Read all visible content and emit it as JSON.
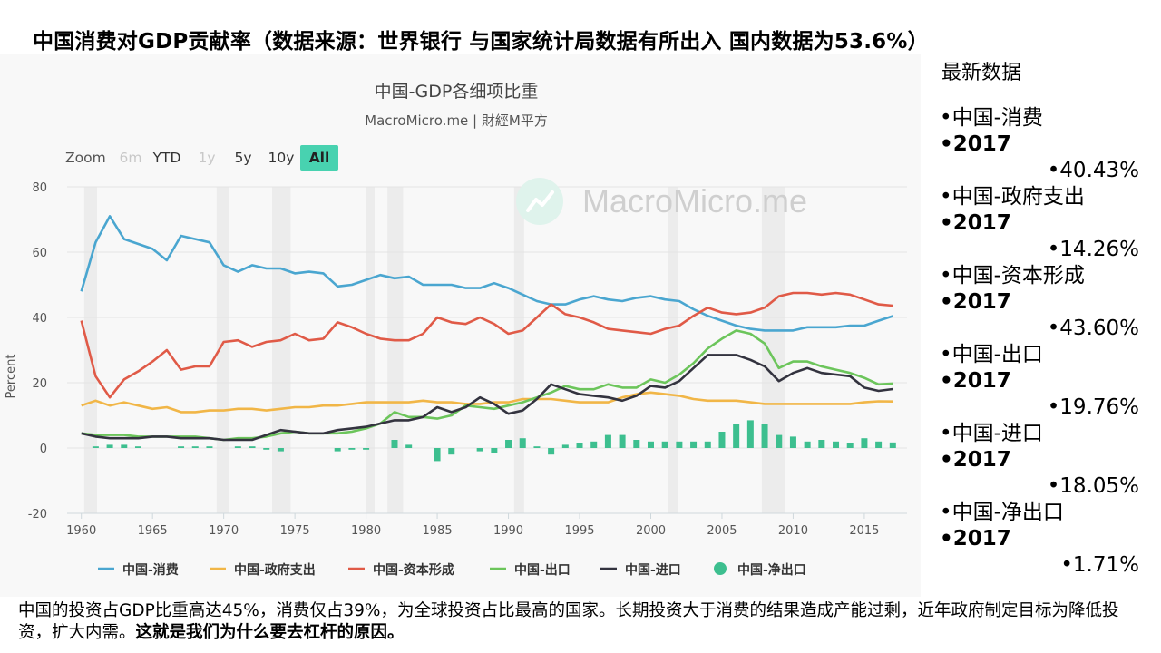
{
  "slide": {
    "title": "中国消费对GDP贡献率（数据来源：世界银行 与国家统计局数据有所出入 国内数据为53.6%）",
    "side_heading": "最新数据",
    "latest": [
      {
        "name": "•中国-消费",
        "year": "•2017",
        "value": "•40.43%"
      },
      {
        "name": "•中国-政府支出",
        "year": "•2017",
        "value": "•14.26%"
      },
      {
        "name": "•中国-资本形成",
        "year": "•2017",
        "value": "•43.60%"
      },
      {
        "name": "•中国-出口",
        "year": "•2017",
        "value": "•19.76%"
      },
      {
        "name": "•中国-进口",
        "year": "•2017",
        "value": "•18.05%"
      },
      {
        "name": "•中国-净出口",
        "year": "•2017",
        "value": "•1.71%"
      }
    ],
    "bottom_text": "中国的投资占GDP比重高达45%，消费仅占39%，为全球投资占比最高的国家。长期投资大于消费的结果造成产能过剩，近年政府制定目标为降低投资，扩大内需。",
    "bottom_bold": "这就是我们为什么要去杠杆的原因。"
  },
  "chart_data": {
    "type": "line",
    "title": "中国-GDP各细项比重",
    "subtitle": "MacroMicro.me | 財經M平方",
    "watermark": "MacroMicro.me",
    "zoom_label": "Zoom",
    "range_buttons": [
      "6m",
      "YTD",
      "1y",
      "5y",
      "10y",
      "All"
    ],
    "active_range": "All",
    "ylabel": "Percent",
    "ylim": [
      -20,
      80
    ],
    "yticks": [
      -20,
      0,
      20,
      40,
      60,
      80
    ],
    "xlim": [
      1959,
      2018
    ],
    "xticks": [
      1960,
      1965,
      1970,
      1975,
      1980,
      1985,
      1990,
      1995,
      2000,
      2005,
      2010,
      2015
    ],
    "shaded_periods": [
      [
        1960.2,
        1961.1
      ],
      [
        1969.5,
        1970.4
      ],
      [
        1973.4,
        1974.7
      ],
      [
        1980.0,
        1980.6
      ],
      [
        1981.5,
        1982.6
      ],
      [
        1990.4,
        1991.1
      ],
      [
        2001.2,
        2001.9
      ],
      [
        2007.8,
        2009.4
      ]
    ],
    "x": [
      1960,
      1961,
      1962,
      1963,
      1964,
      1965,
      1966,
      1967,
      1968,
      1969,
      1970,
      1971,
      1972,
      1973,
      1974,
      1975,
      1976,
      1977,
      1978,
      1979,
      1980,
      1981,
      1982,
      1983,
      1984,
      1985,
      1986,
      1987,
      1988,
      1989,
      1990,
      1991,
      1992,
      1993,
      1994,
      1995,
      1996,
      1997,
      1998,
      1999,
      2000,
      2001,
      2002,
      2003,
      2004,
      2005,
      2006,
      2007,
      2008,
      2009,
      2010,
      2011,
      2012,
      2013,
      2014,
      2015,
      2016,
      2017
    ],
    "series": [
      {
        "name": "中国-消费",
        "type": "line",
        "color": "#4aa6d0",
        "values": [
          48.0,
          63.0,
          71.0,
          64.0,
          62.5,
          61.0,
          57.5,
          65.0,
          64.0,
          63.0,
          56.0,
          54.0,
          56.0,
          55.0,
          55.0,
          53.5,
          54.0,
          53.5,
          49.5,
          50.0,
          51.5,
          53.0,
          52.0,
          52.5,
          50.0,
          50.0,
          50.0,
          49.0,
          49.0,
          50.5,
          49.0,
          47.0,
          45.0,
          44.0,
          44.0,
          45.5,
          46.5,
          45.5,
          45.0,
          46.0,
          46.5,
          45.5,
          45.0,
          42.5,
          40.5,
          39.0,
          37.5,
          36.5,
          36.0,
          36.0,
          36.0,
          37.0,
          37.0,
          37.0,
          37.5,
          37.5,
          39.0,
          40.43
        ]
      },
      {
        "name": "中国-政府支出",
        "type": "line",
        "color": "#f1b647",
        "values": [
          13.0,
          14.5,
          13.0,
          14.0,
          13.0,
          12.0,
          12.5,
          11.0,
          11.0,
          11.5,
          11.5,
          12.0,
          12.0,
          11.5,
          12.0,
          12.5,
          12.5,
          13.0,
          13.0,
          13.5,
          14.0,
          14.0,
          14.0,
          14.0,
          14.5,
          14.0,
          14.0,
          13.5,
          13.5,
          14.0,
          14.0,
          15.0,
          15.0,
          15.0,
          14.5,
          14.0,
          14.0,
          14.0,
          15.5,
          16.5,
          17.0,
          16.5,
          16.0,
          15.0,
          14.5,
          14.5,
          14.5,
          14.0,
          13.5,
          13.5,
          13.5,
          13.5,
          13.5,
          13.5,
          13.5,
          14.0,
          14.3,
          14.26
        ]
      },
      {
        "name": "中国-资本形成",
        "type": "line",
        "color": "#e05a47",
        "values": [
          39.0,
          22.0,
          15.5,
          21.0,
          23.5,
          26.5,
          30.0,
          24.0,
          25.0,
          25.0,
          32.5,
          33.0,
          31.0,
          32.5,
          33.0,
          35.0,
          33.0,
          33.5,
          38.5,
          37.0,
          35.0,
          33.5,
          33.0,
          33.0,
          35.0,
          40.0,
          38.5,
          38.0,
          40.0,
          38.0,
          35.0,
          36.0,
          40.0,
          44.0,
          41.0,
          40.0,
          38.5,
          36.5,
          36.0,
          35.5,
          35.0,
          36.5,
          37.5,
          40.5,
          43.0,
          41.5,
          41.0,
          41.5,
          43.0,
          46.5,
          47.5,
          47.5,
          47.0,
          47.5,
          47.0,
          45.5,
          44.0,
          43.6
        ]
      },
      {
        "name": "中国-出口",
        "type": "line",
        "color": "#6cc55b",
        "values": [
          4.5,
          4.0,
          4.0,
          4.0,
          3.5,
          3.5,
          3.5,
          3.5,
          3.5,
          3.0,
          2.5,
          3.0,
          3.0,
          3.5,
          4.5,
          5.0,
          4.5,
          4.5,
          4.5,
          5.0,
          6.0,
          7.5,
          11.0,
          9.5,
          9.5,
          9.0,
          10.0,
          13.0,
          12.5,
          12.0,
          13.0,
          14.0,
          15.5,
          17.0,
          19.0,
          18.0,
          18.0,
          19.5,
          18.5,
          18.5,
          21.0,
          20.0,
          22.5,
          26.0,
          30.5,
          33.5,
          36.0,
          35.0,
          32.0,
          24.5,
          26.5,
          26.5,
          25.0,
          24.0,
          23.0,
          21.5,
          19.5,
          19.76
        ]
      },
      {
        "name": "中国-进口",
        "type": "line",
        "color": "#33333f",
        "values": [
          4.5,
          3.5,
          3.0,
          3.0,
          3.0,
          3.5,
          3.5,
          3.0,
          3.0,
          3.0,
          2.5,
          2.5,
          2.5,
          4.0,
          5.5,
          5.0,
          4.5,
          4.5,
          5.5,
          6.0,
          6.5,
          7.5,
          8.5,
          8.5,
          9.5,
          12.5,
          11.0,
          12.5,
          15.5,
          13.5,
          10.5,
          11.5,
          15.0,
          19.5,
          18.0,
          16.5,
          16.0,
          15.5,
          14.5,
          16.0,
          19.0,
          18.5,
          20.5,
          24.5,
          28.5,
          28.5,
          28.5,
          27.0,
          25.0,
          20.5,
          23.0,
          24.5,
          23.0,
          22.5,
          22.0,
          18.5,
          17.5,
          18.05
        ]
      },
      {
        "name": "中国-净出口",
        "type": "column",
        "color": "#3dbf8f",
        "values": [
          0.0,
          0.5,
          1.0,
          1.0,
          0.5,
          0.0,
          0.0,
          0.5,
          0.5,
          0.5,
          0.0,
          0.5,
          0.5,
          -0.5,
          -1.0,
          0.0,
          0.0,
          0.0,
          -1.0,
          -0.5,
          -0.5,
          0.0,
          2.5,
          1.0,
          0.0,
          -4.0,
          -2.0,
          0.0,
          -1.0,
          -1.5,
          2.5,
          3.0,
          0.5,
          -2.0,
          1.0,
          1.5,
          2.0,
          4.0,
          4.0,
          2.5,
          2.0,
          2.0,
          2.0,
          2.0,
          2.0,
          5.0,
          7.5,
          8.5,
          7.5,
          4.0,
          3.5,
          2.0,
          2.5,
          2.0,
          1.5,
          3.0,
          2.0,
          1.71
        ]
      }
    ]
  }
}
